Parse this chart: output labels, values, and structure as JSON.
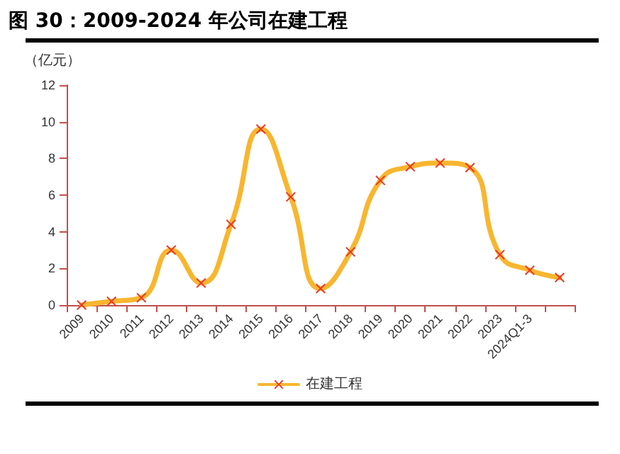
{
  "chart_data": {
    "type": "line",
    "title": "图 30：2009-2024 年公司在建工程",
    "ylabel": "（亿元）",
    "categories": [
      "2009",
      "2010",
      "2011",
      "2012",
      "2013",
      "2014",
      "2015",
      "2016",
      "2017",
      "2018",
      "2019",
      "2020",
      "2021",
      "2022",
      "2023",
      "2024Q1-3",
      null
    ],
    "series": [
      {
        "name": "在建工程",
        "color": "#f8b62f",
        "values": [
          0,
          0.2,
          0.4,
          3.0,
          1.2,
          4.4,
          9.6,
          5.9,
          0.9,
          2.9,
          6.8,
          7.55,
          7.75,
          7.5,
          2.75,
          1.9,
          1.5
        ]
      }
    ],
    "ylim": [
      0,
      12
    ],
    "yticks": [
      0,
      2,
      4,
      6,
      8,
      10,
      12
    ],
    "grid": false,
    "legend": "bottom",
    "marker": "cross",
    "line_style": "solid"
  }
}
